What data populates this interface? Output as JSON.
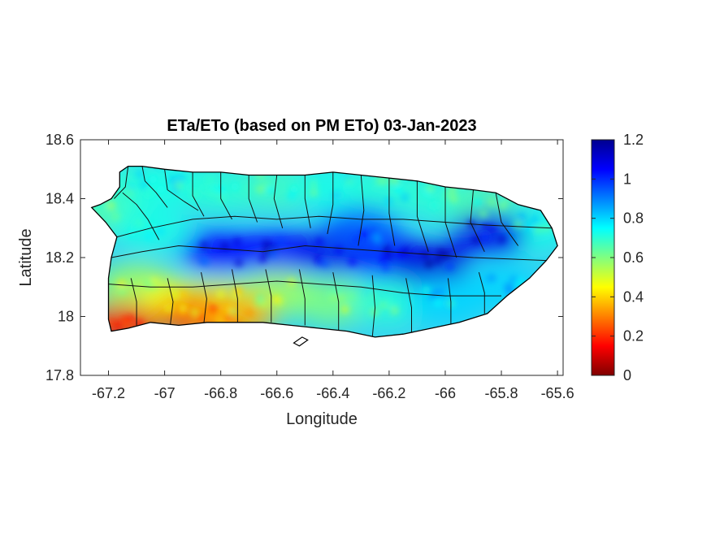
{
  "title": "ETa/ETo (based on PM ETo) 03-Jan-2023",
  "xlabel": "Longitude",
  "ylabel": "Latitude",
  "xlim": [
    -67.3,
    -65.58
  ],
  "ylim": [
    17.8,
    18.6
  ],
  "xticks": [
    -67.2,
    -67,
    -66.8,
    -66.6,
    -66.4,
    -66.2,
    -66,
    -65.8,
    -65.6
  ],
  "xtick_labels": [
    "-67.2",
    "-67",
    "-66.8",
    "-66.6",
    "-66.4",
    "-66.2",
    "-66",
    "-65.8",
    "-65.6"
  ],
  "yticks": [
    17.8,
    18,
    18.2,
    18.4,
    18.6
  ],
  "ytick_labels": [
    "17.8",
    "18",
    "18.2",
    "18.4",
    "18.6"
  ],
  "colorbar": {
    "range": [
      0,
      1.2
    ],
    "ticks": [
      0,
      0.2,
      0.4,
      0.6,
      0.8,
      1,
      1.2
    ],
    "tick_labels": [
      "0",
      "0.2",
      "0.4",
      "0.6",
      "0.8",
      "1",
      "1.2"
    ],
    "colormap": "jet",
    "colors": [
      "#7f0000",
      "#ff0000",
      "#ff8000",
      "#ffff00",
      "#80ff80",
      "#00ffff",
      "#0080ff",
      "#0000ff",
      "#00008f"
    ]
  },
  "map": {
    "region_outline": [
      [
        -67.26,
        18.37
      ],
      [
        -67.23,
        18.38
      ],
      [
        -67.19,
        18.4
      ],
      [
        -67.16,
        18.44
      ],
      [
        -67.16,
        18.49
      ],
      [
        -67.13,
        18.51
      ],
      [
        -67.08,
        18.51
      ],
      [
        -67.0,
        18.5
      ],
      [
        -66.9,
        18.49
      ],
      [
        -66.8,
        18.49
      ],
      [
        -66.7,
        18.48
      ],
      [
        -66.6,
        18.48
      ],
      [
        -66.5,
        18.48
      ],
      [
        -66.4,
        18.49
      ],
      [
        -66.3,
        18.48
      ],
      [
        -66.2,
        18.47
      ],
      [
        -66.1,
        18.46
      ],
      [
        -66.0,
        18.44
      ],
      [
        -65.9,
        18.43
      ],
      [
        -65.82,
        18.42
      ],
      [
        -65.74,
        18.38
      ],
      [
        -65.66,
        18.36
      ],
      [
        -65.62,
        18.3
      ],
      [
        -65.6,
        18.24
      ],
      [
        -65.64,
        18.19
      ],
      [
        -65.7,
        18.13
      ],
      [
        -65.78,
        18.07
      ],
      [
        -65.85,
        18.01
      ],
      [
        -65.95,
        17.98
      ],
      [
        -66.05,
        17.96
      ],
      [
        -66.15,
        17.94
      ],
      [
        -66.25,
        17.93
      ],
      [
        -66.35,
        17.95
      ],
      [
        -66.45,
        17.96
      ],
      [
        -66.55,
        17.97
      ],
      [
        -66.65,
        17.98
      ],
      [
        -66.75,
        17.98
      ],
      [
        -66.85,
        17.98
      ],
      [
        -66.95,
        17.97
      ],
      [
        -67.05,
        17.98
      ],
      [
        -67.13,
        17.96
      ],
      [
        -67.19,
        17.95
      ],
      [
        -67.2,
        17.99
      ],
      [
        -67.2,
        18.06
      ],
      [
        -67.2,
        18.13
      ],
      [
        -67.19,
        18.2
      ],
      [
        -67.17,
        18.27
      ],
      [
        -67.21,
        18.32
      ],
      [
        -67.26,
        18.37
      ]
    ],
    "islets": [
      [
        [
          -66.54,
          17.91
        ],
        [
          -66.51,
          17.93
        ],
        [
          -66.49,
          17.92
        ],
        [
          -66.52,
          17.9
        ]
      ]
    ],
    "municipal_lines": [
      [
        [
          -67.13,
          18.51
        ],
        [
          -67.14,
          18.44
        ],
        [
          -67.18,
          18.4
        ]
      ],
      [
        [
          -67.15,
          18.42
        ],
        [
          -67.1,
          18.38
        ],
        [
          -67.06,
          18.33
        ],
        [
          -67.02,
          18.26
        ]
      ],
      [
        [
          -67.08,
          18.51
        ],
        [
          -67.07,
          18.46
        ],
        [
          -67.03,
          18.42
        ],
        [
          -66.99,
          18.37
        ]
      ],
      [
        [
          -67.0,
          18.5
        ],
        [
          -66.99,
          18.43
        ],
        [
          -66.93,
          18.39
        ],
        [
          -66.88,
          18.36
        ]
      ],
      [
        [
          -66.9,
          18.49
        ],
        [
          -66.9,
          18.41
        ],
        [
          -66.86,
          18.34
        ]
      ],
      [
        [
          -66.8,
          18.49
        ],
        [
          -66.8,
          18.4
        ],
        [
          -66.76,
          18.33
        ]
      ],
      [
        [
          -66.7,
          18.48
        ],
        [
          -66.7,
          18.4
        ],
        [
          -66.67,
          18.32
        ]
      ],
      [
        [
          -66.6,
          18.48
        ],
        [
          -66.61,
          18.4
        ],
        [
          -66.58,
          18.3
        ]
      ],
      [
        [
          -66.5,
          18.48
        ],
        [
          -66.5,
          18.4
        ],
        [
          -66.48,
          18.3
        ]
      ],
      [
        [
          -66.4,
          18.49
        ],
        [
          -66.4,
          18.38
        ],
        [
          -66.42,
          18.28
        ]
      ],
      [
        [
          -66.3,
          18.48
        ],
        [
          -66.29,
          18.36
        ],
        [
          -66.31,
          18.24
        ]
      ],
      [
        [
          -66.2,
          18.47
        ],
        [
          -66.2,
          18.35
        ],
        [
          -66.18,
          18.24
        ]
      ],
      [
        [
          -66.1,
          18.46
        ],
        [
          -66.1,
          18.34
        ],
        [
          -66.06,
          18.22
        ]
      ],
      [
        [
          -66.0,
          18.44
        ],
        [
          -66.0,
          18.32
        ],
        [
          -65.96,
          18.2
        ]
      ],
      [
        [
          -65.9,
          18.43
        ],
        [
          -65.91,
          18.32
        ],
        [
          -65.86,
          18.22
        ]
      ],
      [
        [
          -65.82,
          18.42
        ],
        [
          -65.8,
          18.32
        ],
        [
          -65.74,
          18.24
        ]
      ],
      [
        [
          -67.19,
          18.2
        ],
        [
          -67.08,
          18.22
        ],
        [
          -66.95,
          18.24
        ],
        [
          -66.8,
          18.23
        ],
        [
          -66.65,
          18.22
        ],
        [
          -66.5,
          18.24
        ],
        [
          -66.35,
          18.23
        ],
        [
          -66.2,
          18.22
        ],
        [
          -66.05,
          18.21
        ],
        [
          -65.9,
          18.2
        ],
        [
          -65.64,
          18.19
        ]
      ],
      [
        [
          -67.17,
          18.27
        ],
        [
          -67.05,
          18.3
        ],
        [
          -66.9,
          18.33
        ],
        [
          -66.75,
          18.34
        ],
        [
          -66.6,
          18.33
        ],
        [
          -66.45,
          18.34
        ],
        [
          -66.3,
          18.33
        ],
        [
          -66.15,
          18.33
        ],
        [
          -66.0,
          18.32
        ],
        [
          -65.85,
          18.31
        ],
        [
          -65.62,
          18.3
        ]
      ],
      [
        [
          -67.2,
          18.11
        ],
        [
          -67.05,
          18.1
        ],
        [
          -66.9,
          18.1
        ],
        [
          -66.75,
          18.11
        ],
        [
          -66.6,
          18.12
        ],
        [
          -66.45,
          18.11
        ],
        [
          -66.3,
          18.1
        ],
        [
          -66.15,
          18.08
        ],
        [
          -66.0,
          18.07
        ],
        [
          -65.8,
          18.07
        ]
      ],
      [
        [
          -67.1,
          17.97
        ],
        [
          -67.1,
          18.05
        ],
        [
          -67.12,
          18.13
        ]
      ],
      [
        [
          -66.98,
          17.97
        ],
        [
          -66.97,
          18.05
        ],
        [
          -66.99,
          18.13
        ]
      ],
      [
        [
          -66.86,
          17.98
        ],
        [
          -66.85,
          18.06
        ],
        [
          -66.87,
          18.15
        ]
      ],
      [
        [
          -66.74,
          17.98
        ],
        [
          -66.74,
          18.06
        ],
        [
          -66.76,
          18.16
        ]
      ],
      [
        [
          -66.62,
          17.98
        ],
        [
          -66.62,
          18.07
        ],
        [
          -66.64,
          18.16
        ]
      ],
      [
        [
          -66.5,
          17.97
        ],
        [
          -66.5,
          18.06
        ],
        [
          -66.52,
          18.16
        ]
      ],
      [
        [
          -66.38,
          17.95
        ],
        [
          -66.38,
          18.05
        ],
        [
          -66.4,
          18.15
        ]
      ],
      [
        [
          -66.26,
          17.93
        ],
        [
          -66.25,
          18.03
        ],
        [
          -66.26,
          18.14
        ]
      ],
      [
        [
          -66.12,
          17.94
        ],
        [
          -66.12,
          18.03
        ],
        [
          -66.14,
          18.13
        ]
      ],
      [
        [
          -65.98,
          17.97
        ],
        [
          -65.98,
          18.05
        ],
        [
          -65.99,
          18.13
        ]
      ],
      [
        [
          -65.86,
          18.01
        ],
        [
          -65.86,
          18.08
        ],
        [
          -65.88,
          18.15
        ]
      ]
    ]
  },
  "chart_data": {
    "type": "heatmap",
    "title": "ETa/ETo (based on PM ETo) 03-Jan-2023",
    "xlabel": "Longitude",
    "ylabel": "Latitude",
    "xlim": [
      -67.3,
      -65.58
    ],
    "ylim": [
      17.8,
      18.6
    ],
    "colorbar_range": [
      0,
      1.2
    ],
    "grid": false,
    "value_samples": [
      {
        "lon": -67.22,
        "lat": 18.36,
        "value": 0.65
      },
      {
        "lon": -67.1,
        "lat": 18.45,
        "value": 0.7
      },
      {
        "lon": -66.95,
        "lat": 18.45,
        "value": 0.72
      },
      {
        "lon": -66.8,
        "lat": 18.43,
        "value": 0.7
      },
      {
        "lon": -66.6,
        "lat": 18.44,
        "value": 0.68
      },
      {
        "lon": -66.4,
        "lat": 18.44,
        "value": 0.72
      },
      {
        "lon": -66.2,
        "lat": 18.43,
        "value": 0.7
      },
      {
        "lon": -66.0,
        "lat": 18.4,
        "value": 0.7
      },
      {
        "lon": -65.85,
        "lat": 18.37,
        "value": 0.65
      },
      {
        "lon": -65.7,
        "lat": 18.3,
        "value": 0.72
      },
      {
        "lon": -67.05,
        "lat": 18.3,
        "value": 0.72
      },
      {
        "lon": -66.8,
        "lat": 18.22,
        "value": 1.05
      },
      {
        "lon": -66.6,
        "lat": 18.22,
        "value": 1.05
      },
      {
        "lon": -66.4,
        "lat": 18.22,
        "value": 1.08
      },
      {
        "lon": -66.2,
        "lat": 18.2,
        "value": 1.05
      },
      {
        "lon": -66.05,
        "lat": 18.18,
        "value": 1.1
      },
      {
        "lon": -65.85,
        "lat": 18.28,
        "value": 1.08
      },
      {
        "lon": -66.3,
        "lat": 18.3,
        "value": 0.95
      },
      {
        "lon": -67.1,
        "lat": 18.1,
        "value": 0.55
      },
      {
        "lon": -66.95,
        "lat": 18.05,
        "value": 0.45
      },
      {
        "lon": -66.8,
        "lat": 18.05,
        "value": 0.5
      },
      {
        "lon": -66.6,
        "lat": 18.08,
        "value": 0.55
      },
      {
        "lon": -66.4,
        "lat": 18.05,
        "value": 0.6
      },
      {
        "lon": -66.2,
        "lat": 18.05,
        "value": 0.7
      },
      {
        "lon": -66.0,
        "lat": 18.05,
        "value": 0.8
      },
      {
        "lon": -65.8,
        "lat": 18.1,
        "value": 0.8
      },
      {
        "lon": -66.88,
        "lat": 18.0,
        "value": 0.25
      },
      {
        "lon": -67.15,
        "lat": 17.97,
        "value": 0.2
      },
      {
        "lon": -66.75,
        "lat": 18.0,
        "value": 0.35
      }
    ]
  }
}
